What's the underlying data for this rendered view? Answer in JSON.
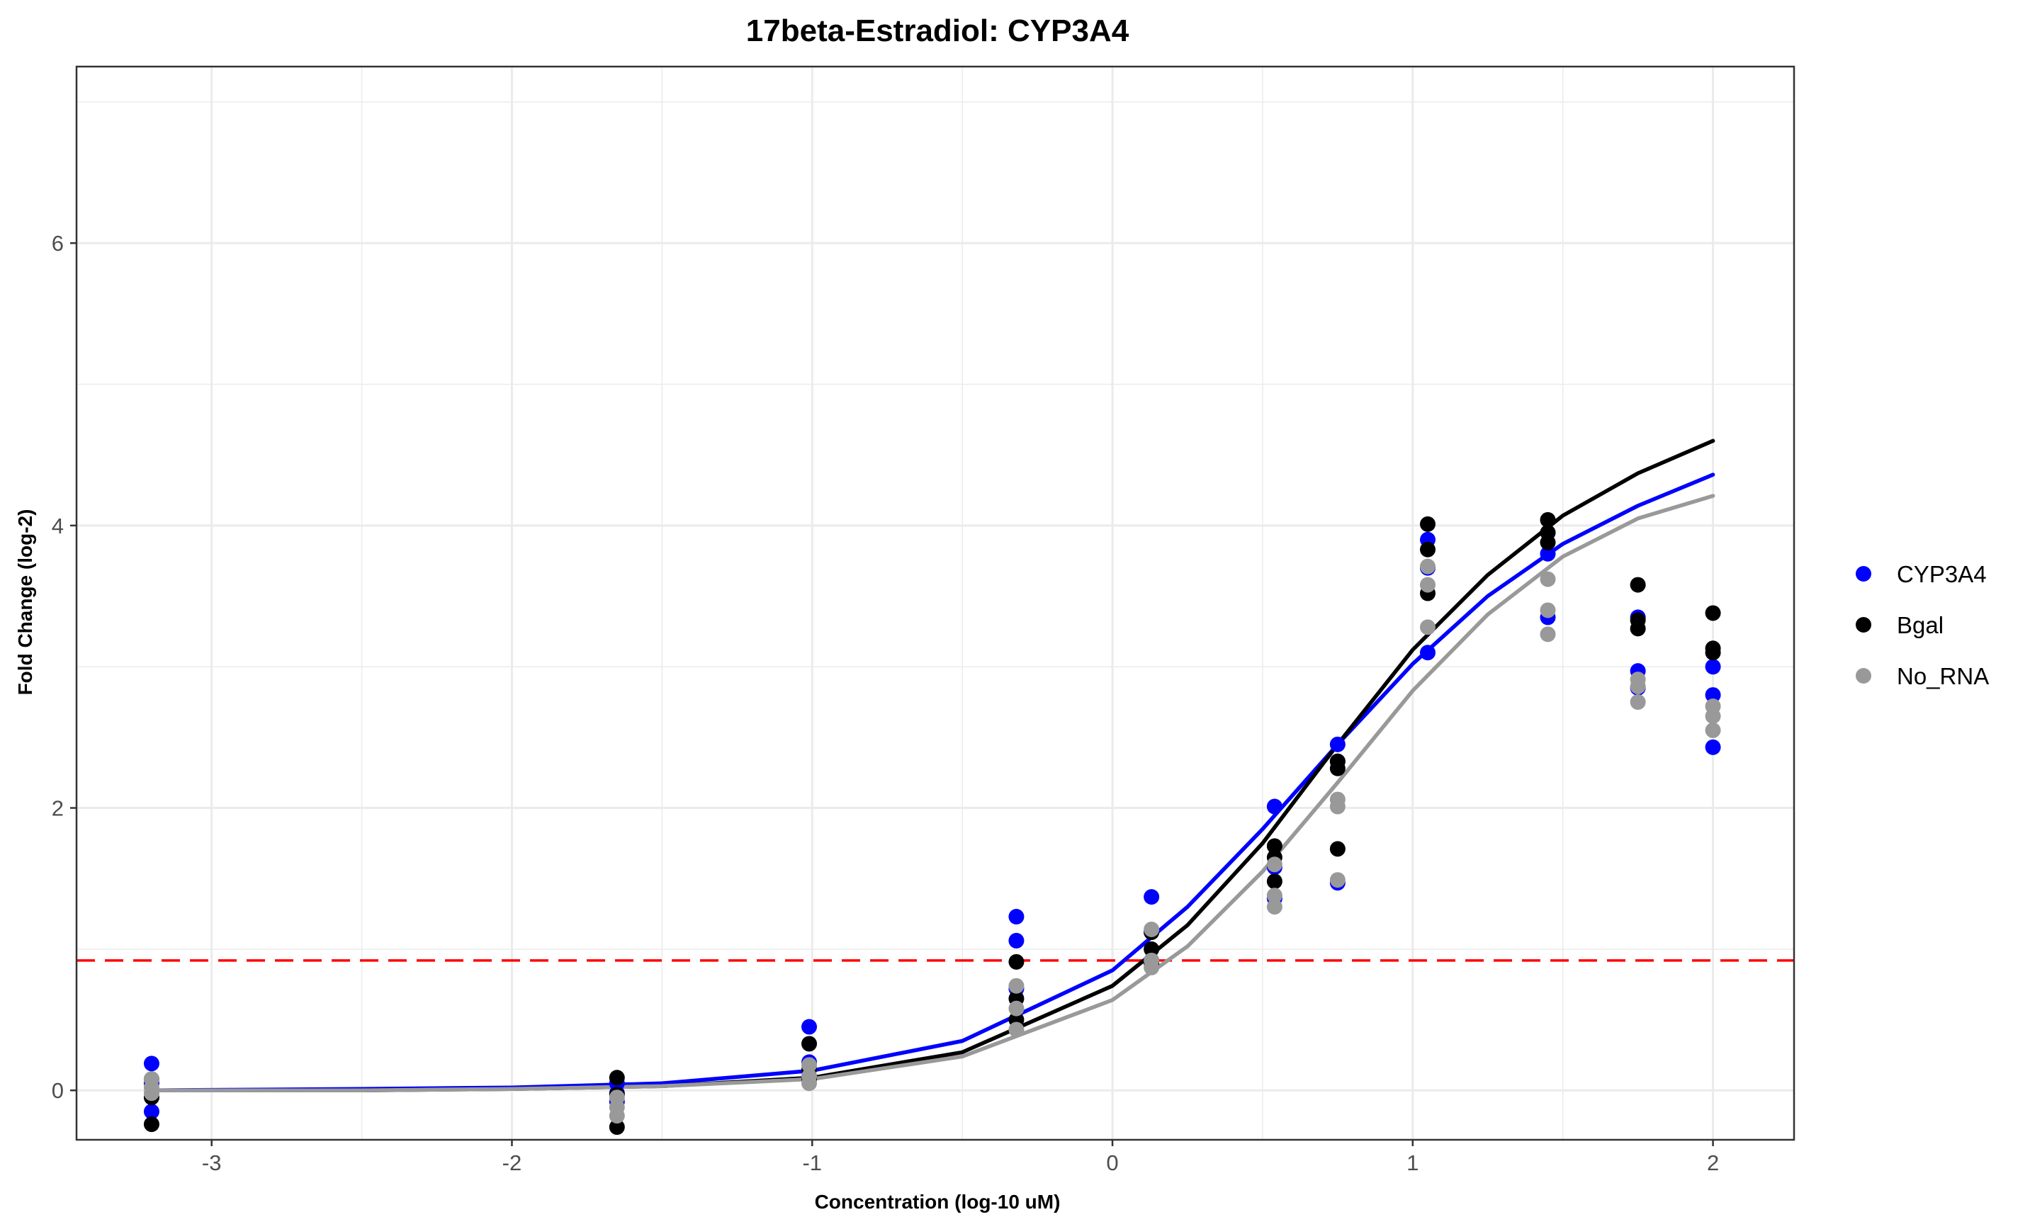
{
  "chart_data": {
    "type": "scatter",
    "title": "17beta-Estradiol: CYP3A4",
    "xlabel": "Concentration (log-10 uM)",
    "ylabel": "Fold Change (log-2)",
    "xlim": [
      -3.45,
      2.27
    ],
    "ylim": [
      -0.35,
      7.25
    ],
    "x_ticks": [
      -3,
      -2,
      -1,
      0,
      1,
      2
    ],
    "y_ticks": [
      0,
      2,
      4,
      6
    ],
    "grid": true,
    "legend_position": "right",
    "threshold_line": {
      "y": 0.92,
      "color": "#ff0000",
      "style": "dashed"
    },
    "series": [
      {
        "name": "CYP3A4",
        "color": "#0000ff",
        "points": [
          [
            -3.2,
            0.19
          ],
          [
            -3.2,
            -0.15
          ],
          [
            -3.2,
            0.05
          ],
          [
            -1.65,
            -0.08
          ],
          [
            -1.65,
            -0.02
          ],
          [
            -1.65,
            0.05
          ],
          [
            -1.01,
            0.45
          ],
          [
            -1.01,
            0.2
          ],
          [
            -1.01,
            0.1
          ],
          [
            -0.32,
            1.23
          ],
          [
            -0.32,
            1.06
          ],
          [
            -0.32,
            0.72
          ],
          [
            0.13,
            1.37
          ],
          [
            0.13,
            1.12
          ],
          [
            0.13,
            0.92
          ],
          [
            0.54,
            2.01
          ],
          [
            0.54,
            1.58
          ],
          [
            0.54,
            1.36
          ],
          [
            0.75,
            2.45
          ],
          [
            0.75,
            2.33
          ],
          [
            0.75,
            1.47
          ],
          [
            1.05,
            3.9
          ],
          [
            1.05,
            3.1
          ],
          [
            1.05,
            3.7
          ],
          [
            1.45,
            3.8
          ],
          [
            1.45,
            3.35
          ],
          [
            1.45,
            3.95
          ],
          [
            1.75,
            2.97
          ],
          [
            1.75,
            3.35
          ],
          [
            1.75,
            2.85
          ],
          [
            2.0,
            3.0
          ],
          [
            2.0,
            2.8
          ],
          [
            2.0,
            2.43
          ]
        ],
        "curve": [
          [
            -3.2,
            0.0
          ],
          [
            -2.5,
            0.01
          ],
          [
            -2.0,
            0.02
          ],
          [
            -1.5,
            0.05
          ],
          [
            -1.0,
            0.14
          ],
          [
            -0.5,
            0.35
          ],
          [
            0.0,
            0.85
          ],
          [
            0.25,
            1.3
          ],
          [
            0.5,
            1.85
          ],
          [
            0.75,
            2.45
          ],
          [
            1.0,
            3.02
          ],
          [
            1.25,
            3.5
          ],
          [
            1.5,
            3.87
          ],
          [
            1.75,
            4.14
          ],
          [
            2.0,
            4.36
          ]
        ]
      },
      {
        "name": "Bgal",
        "color": "#000000",
        "points": [
          [
            -3.2,
            -0.24
          ],
          [
            -3.2,
            -0.05
          ],
          [
            -3.2,
            0.08
          ],
          [
            -1.65,
            0.09
          ],
          [
            -1.65,
            -0.26
          ],
          [
            -1.65,
            -0.03
          ],
          [
            -1.01,
            0.33
          ],
          [
            -1.01,
            0.15
          ],
          [
            -1.01,
            0.08
          ],
          [
            -0.32,
            0.91
          ],
          [
            -0.32,
            0.65
          ],
          [
            -0.32,
            0.5
          ],
          [
            0.13,
            1.12
          ],
          [
            0.13,
            1.0
          ],
          [
            0.13,
            0.9
          ],
          [
            0.54,
            1.73
          ],
          [
            0.54,
            1.65
          ],
          [
            0.54,
            1.48
          ],
          [
            0.75,
            2.33
          ],
          [
            0.75,
            2.28
          ],
          [
            0.75,
            1.71
          ],
          [
            1.05,
            4.01
          ],
          [
            1.05,
            3.83
          ],
          [
            1.05,
            3.52
          ],
          [
            1.45,
            4.04
          ],
          [
            1.45,
            3.95
          ],
          [
            1.45,
            3.88
          ],
          [
            1.75,
            3.58
          ],
          [
            1.75,
            3.33
          ],
          [
            1.75,
            3.27
          ],
          [
            2.0,
            3.38
          ],
          [
            2.0,
            3.13
          ],
          [
            2.0,
            3.1
          ]
        ],
        "curve": [
          [
            -3.2,
            0.0
          ],
          [
            -2.5,
            0.0
          ],
          [
            -2.0,
            0.01
          ],
          [
            -1.5,
            0.03
          ],
          [
            -1.0,
            0.09
          ],
          [
            -0.5,
            0.27
          ],
          [
            0.0,
            0.74
          ],
          [
            0.25,
            1.17
          ],
          [
            0.5,
            1.75
          ],
          [
            0.75,
            2.45
          ],
          [
            1.0,
            3.12
          ],
          [
            1.25,
            3.65
          ],
          [
            1.5,
            4.07
          ],
          [
            1.75,
            4.37
          ],
          [
            2.0,
            4.6
          ]
        ]
      },
      {
        "name": "No_RNA",
        "color": "#999999",
        "points": [
          [
            -3.2,
            0.08
          ],
          [
            -3.2,
            0.02
          ],
          [
            -3.2,
            -0.02
          ],
          [
            -1.65,
            -0.05
          ],
          [
            -1.65,
            -0.12
          ],
          [
            -1.65,
            -0.18
          ],
          [
            -1.01,
            0.18
          ],
          [
            -1.01,
            0.1
          ],
          [
            -1.01,
            0.05
          ],
          [
            -0.32,
            0.74
          ],
          [
            -0.32,
            0.58
          ],
          [
            -0.32,
            0.43
          ],
          [
            0.13,
            1.14
          ],
          [
            0.13,
            0.92
          ],
          [
            0.13,
            0.87
          ],
          [
            0.54,
            1.6
          ],
          [
            0.54,
            1.38
          ],
          [
            0.54,
            1.3
          ],
          [
            0.75,
            2.06
          ],
          [
            0.75,
            2.01
          ],
          [
            0.75,
            1.49
          ],
          [
            1.05,
            3.71
          ],
          [
            1.05,
            3.58
          ],
          [
            1.05,
            3.28
          ],
          [
            1.45,
            3.62
          ],
          [
            1.45,
            3.4
          ],
          [
            1.45,
            3.23
          ],
          [
            1.75,
            2.91
          ],
          [
            1.75,
            2.86
          ],
          [
            1.75,
            2.75
          ],
          [
            2.0,
            2.72
          ],
          [
            2.0,
            2.65
          ],
          [
            2.0,
            2.55
          ]
        ],
        "curve": [
          [
            -3.2,
            0.0
          ],
          [
            -2.5,
            0.0
          ],
          [
            -2.0,
            0.01
          ],
          [
            -1.5,
            0.03
          ],
          [
            -1.0,
            0.08
          ],
          [
            -0.5,
            0.24
          ],
          [
            0.0,
            0.64
          ],
          [
            0.25,
            1.02
          ],
          [
            0.5,
            1.55
          ],
          [
            0.75,
            2.18
          ],
          [
            1.0,
            2.83
          ],
          [
            1.25,
            3.37
          ],
          [
            1.5,
            3.78
          ],
          [
            1.75,
            4.05
          ],
          [
            2.0,
            4.21
          ]
        ]
      }
    ]
  }
}
